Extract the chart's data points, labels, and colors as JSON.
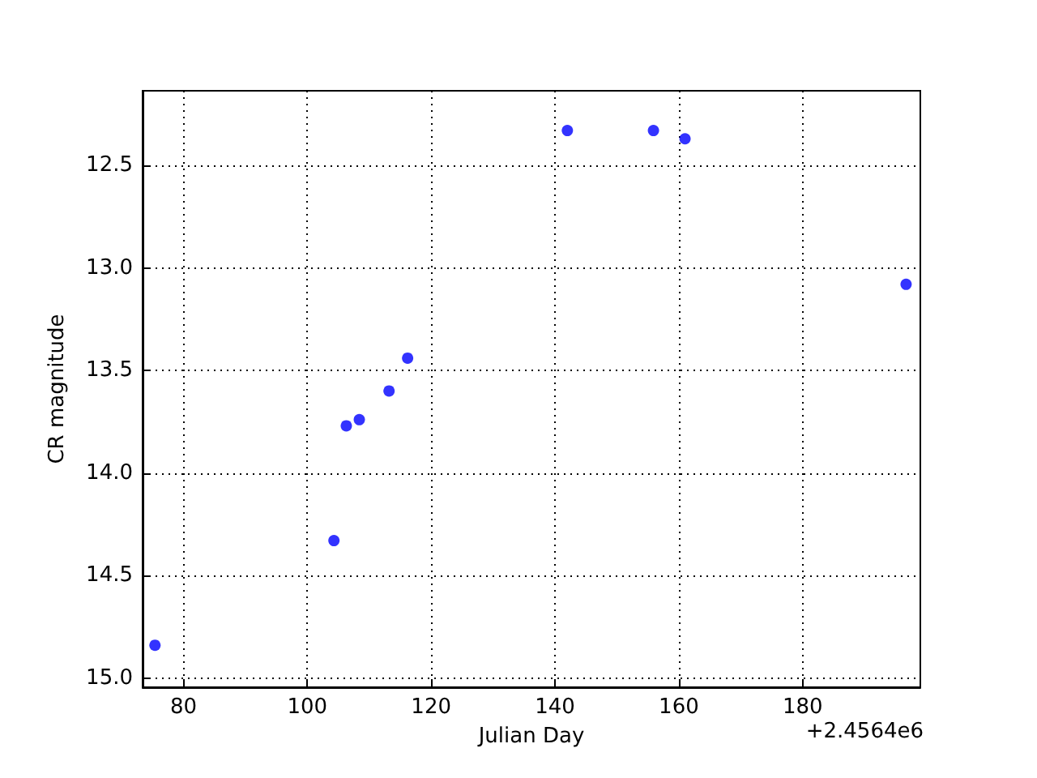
{
  "chart_data": {
    "type": "scatter",
    "xlabel": "Julian Day",
    "ylabel": "CR magnitude",
    "annotations": [
      "+2.4564e6"
    ],
    "x": [
      75.4,
      104.3,
      106.3,
      108.4,
      113.2,
      116.2,
      142.0,
      155.9,
      161.0,
      196.7
    ],
    "series": [
      {
        "color": "#0000ff",
        "values": [
          14.84,
          14.33,
          13.77,
          13.74,
          13.6,
          13.44,
          12.33,
          12.33,
          12.37,
          13.08
        ]
      }
    ],
    "xlim": [
      73.4,
      199
    ],
    "xticks": [
      80,
      100,
      120,
      140,
      160,
      180
    ],
    "ylim": [
      15.045,
      12.136
    ],
    "yticks": [
      {
        "value": 12.5,
        "label": "12.5"
      },
      {
        "value": 13,
        "label": "13.0"
      },
      {
        "value": 13.5,
        "label": "13.5"
      },
      {
        "value": 14,
        "label": "14.0"
      },
      {
        "value": 14.5,
        "label": "14.5"
      },
      {
        "value": 15,
        "label": "15.0"
      }
    ],
    "grid": true,
    "marker": "circle"
  }
}
